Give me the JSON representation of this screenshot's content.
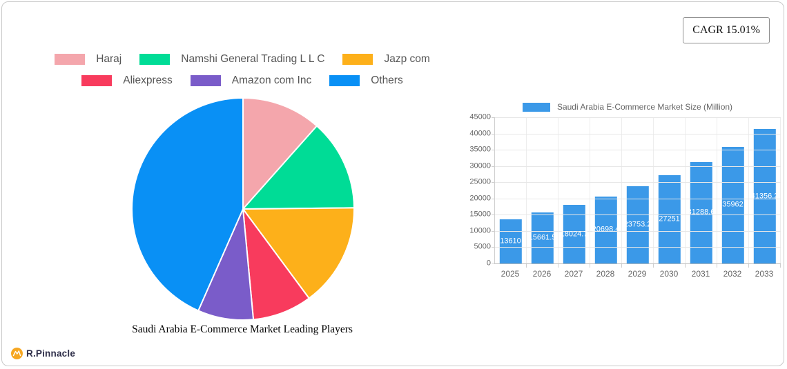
{
  "badge": {
    "cagr_label": "CAGR 15.01%"
  },
  "logo": {
    "text": "R.Pinnacle",
    "icon_color": "#F6A722"
  },
  "chart_data": [
    {
      "type": "pie",
      "title": "Saudi Arabia E-Commerce Market Leading Players",
      "labels": [
        "Haraj",
        "Namshi General Trading L L C",
        "Jazp com",
        "Aliexpress",
        "Amazon com Inc",
        "Others"
      ],
      "values": [
        11.56,
        13.28,
        15.03,
        8.64,
        8.08,
        43.41
      ],
      "colors": [
        "#F4A6AC",
        "#00DC96",
        "#FDB01A",
        "#F83B5D",
        "#7A5CC9",
        "#0990F5"
      ],
      "start_angle_deg": 0,
      "direction": "clockwise",
      "legend_position": "top",
      "legend_rows": [
        3,
        3
      ]
    },
    {
      "type": "bar",
      "legend": "Saudi Arabia E-Commerce Market Size (Million)",
      "categories": [
        "2025",
        "2026",
        "2027",
        "2028",
        "2029",
        "2030",
        "2031",
        "2032",
        "2033"
      ],
      "values": [
        13610,
        15661.5,
        18024.7,
        20698.4,
        23753.2,
        27251,
        31288.6,
        35962,
        41356.2
      ],
      "bar_labels": [
        "13610",
        "15661.5",
        "18024.7",
        "20698.4",
        "23753.2",
        "27251",
        "31288.6",
        "35962",
        "41356.2"
      ],
      "color": "#3B99E8",
      "ylabel": "",
      "xlabel": "",
      "ylim": [
        0,
        45000
      ],
      "ytick_step": 5000,
      "grid": true,
      "legend_position": "top"
    }
  ]
}
